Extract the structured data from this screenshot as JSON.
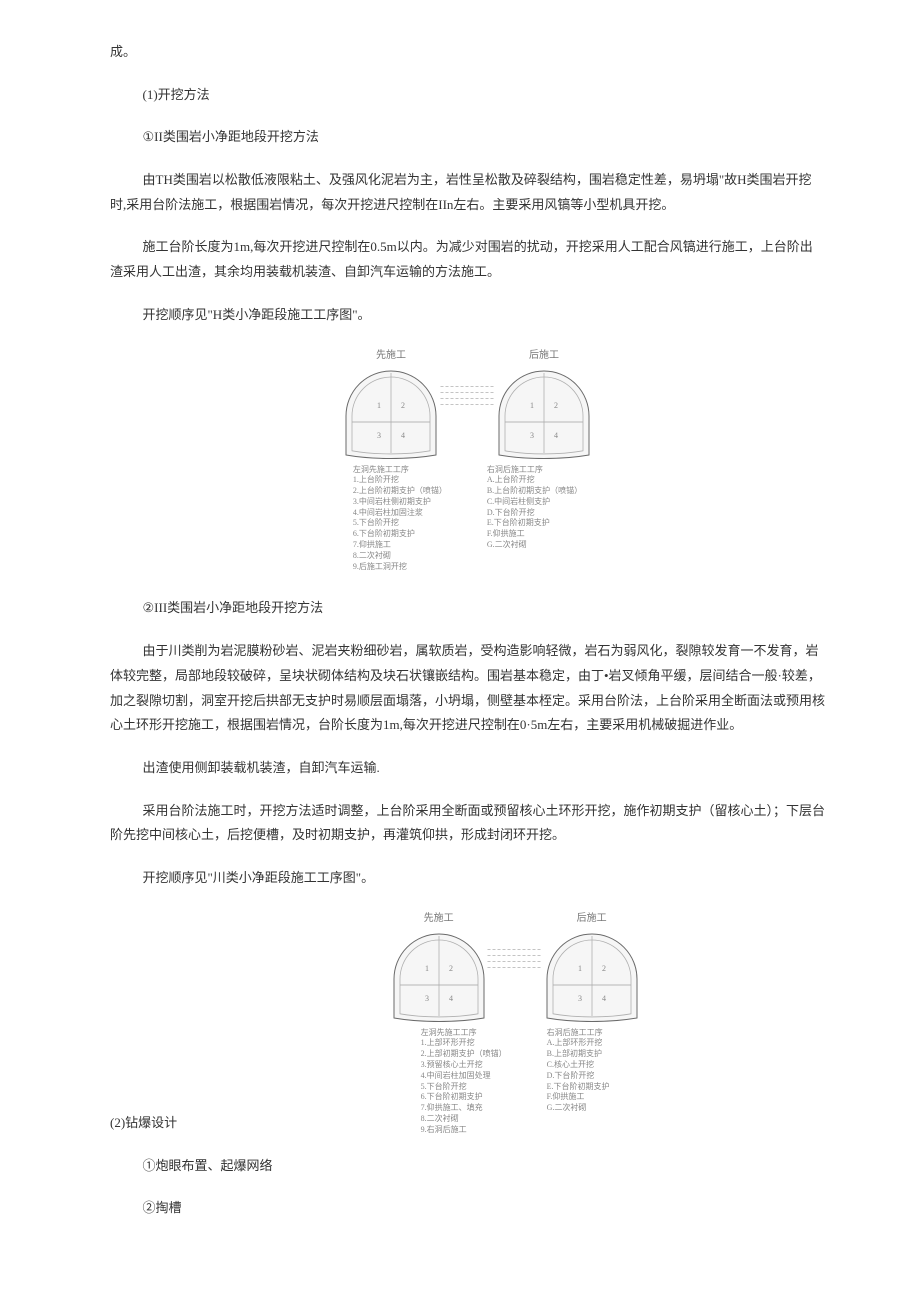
{
  "p_cheng": "成。",
  "p_sec1": "(1)开挖方法",
  "p_sec1_a": "①II类围岩小净距地段开挖方法",
  "p_sec1_a_body1": "由TH类围岩以松散低液限粘土、及强风化泥岩为主，岩性呈松散及碎裂结构，围岩稳定性差，易坍塌\"故H类围岩开挖时,采用台阶法施工，根据围岩情况，每次开挖进尺控制在IIn左右。主要采用风镐等小型机具开挖。",
  "p_sec1_a_body2": "施工台阶长度为1m,每次开挖进尺控制在0.5m以内。为减少对围岩的扰动，开挖采用人工配合风镐进行施工，上台阶出渣采用人工出渣，其余均用装载机装渣、自卸汽车运输的方法施工。",
  "p_sec1_a_body3": "开挖顺序见\"H类小净距段施工工序图\"。",
  "p_sec1_b": "②III类围岩小净距地段开挖方法",
  "p_sec1_b_body1": "由于川类削为岩泥膜粉砂岩、泥岩夹粉细砂岩，属软质岩，受构造影响轻微，岩石为弱风化，裂隙较发育一不发育，岩体较完整，局部地段较破碎，呈块状砌体结构及块石状镶嵌结构。围岩基本稳定，由丁•岩叉倾角平缓，层间结合一般·较差，加之裂隙切割，洞室开挖后拱部无支护时易顺层面塌落，小坍塌，侧壁基本桎定。采用台阶法，上台阶采用全断面法或预用核心土环形开挖施工，根据围岩情况，台阶长度为1m,每次开挖进尺控制在0·5m左右，主要采用机械破掘进作业。",
  "p_sec1_b_body2": "出渣使用侧卸装载机装渣，自卸汽车运输.",
  "p_sec1_b_body3": "采用台阶法施工时，开挖方法适时调整，上台阶采用全断面或预留核心土环形开挖，施作初期支护（留核心土）；下层台阶先挖中间核心土，后挖便槽，及时初期支护，再灌筑仰拱，形成封闭环开挖。",
  "p_sec1_b_body4": "开挖顺序见\"川类小净距段施工工序图\"。",
  "p_sec2": " (2)钻爆设计",
  "p_sec2_a": "①炮眼布置、起爆网络",
  "p_sec2_b": "②掏槽",
  "fig1": {
    "tunnel_width": 98,
    "tunnel_height": 92,
    "stroke": "#6a6a6a",
    "fill": "#f6f6f6",
    "grid": "#b0b0b0",
    "left_label": "先施工",
    "right_label": "后施工",
    "legend_left_title": "左洞先施工工序",
    "legend_left": [
      "1.上台阶开挖",
      "2.上台阶初期支护（喷锚）",
      "3.中间岩柱侧初期支护",
      "4.中间岩柱加固注浆",
      "5.下台阶开挖",
      "6.下台阶初期支护",
      "7.仰拱施工",
      "8.二次衬砌",
      "9.后施工洞开挖"
    ],
    "legend_right_title": "右洞后施工工序",
    "legend_right": [
      "A.上台阶开挖",
      "B.上台阶初期支护（喷锚）",
      "C.中间岩柱侧支护",
      "D.下台阶开挖",
      "E.下台阶初期支护",
      "F.仰拱施工",
      "G.二次衬砌"
    ]
  },
  "fig2": {
    "tunnel_width": 98,
    "tunnel_height": 92,
    "stroke": "#6a6a6a",
    "fill": "#f6f6f6",
    "grid": "#b0b0b0",
    "left_label": "先施工",
    "right_label": "后施工",
    "legend_left_title": "左洞先施工工序",
    "legend_left": [
      "1.上部环形开挖",
      "2.上部初期支护（喷锚）",
      "3.预留核心土开挖",
      "4.中间岩柱加固处理",
      "5.下台阶开挖",
      "6.下台阶初期支护",
      "7.仰拱施工、填充",
      "8.二次衬砌",
      "9.右洞后施工"
    ],
    "legend_right_title": "右洞后施工工序",
    "legend_right": [
      "A.上部环形开挖",
      "B.上部初期支护",
      "C.核心土开挖",
      "D.下台阶开挖",
      "E.下台阶初期支护",
      "F.仰拱施工",
      "G.二次衬砌"
    ]
  }
}
